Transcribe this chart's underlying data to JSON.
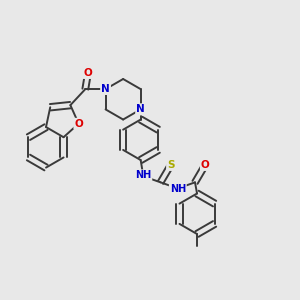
{
  "bg_color": "#e8e8e8",
  "bond_color": "#3a3a3a",
  "bond_width": 1.4,
  "atom_colors": {
    "N": "#0000cc",
    "O": "#dd0000",
    "S": "#aaaa00",
    "C": "#3a3a3a",
    "H": "#3a3a3a"
  },
  "font_size": 7.5,
  "double_sep": 0.055
}
